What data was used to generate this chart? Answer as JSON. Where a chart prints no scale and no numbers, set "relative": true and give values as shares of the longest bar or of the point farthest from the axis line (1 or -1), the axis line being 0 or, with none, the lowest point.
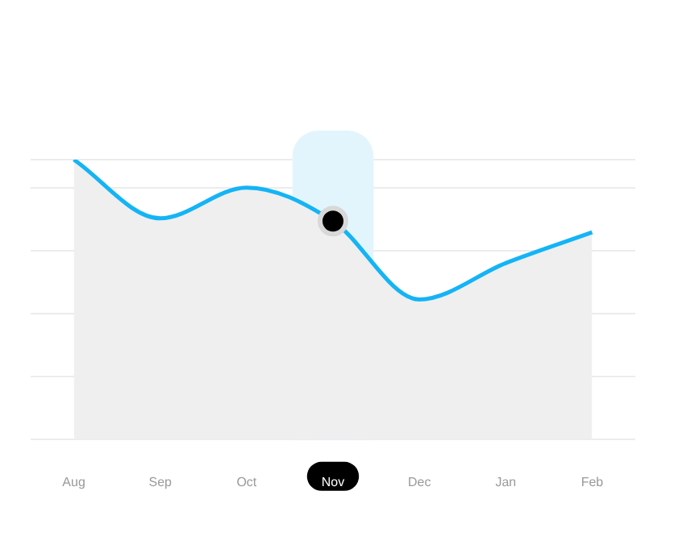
{
  "chart_data": {
    "type": "area",
    "relative": true,
    "categories": [
      "Aug",
      "Sep",
      "Oct",
      "Nov",
      "Dec",
      "Jan",
      "Feb"
    ],
    "series": [
      {
        "color": "#14b4f5",
        "values": [
          1.0,
          0.79,
          0.9,
          0.78,
          0.5,
          0.63,
          0.74
        ]
      }
    ],
    "bands": [
      {
        "axis": "x",
        "from": "Nov",
        "to": "Nov",
        "color": "#e3f5fc"
      }
    ],
    "grid": "y",
    "legend": false,
    "marker": "none"
  }
}
